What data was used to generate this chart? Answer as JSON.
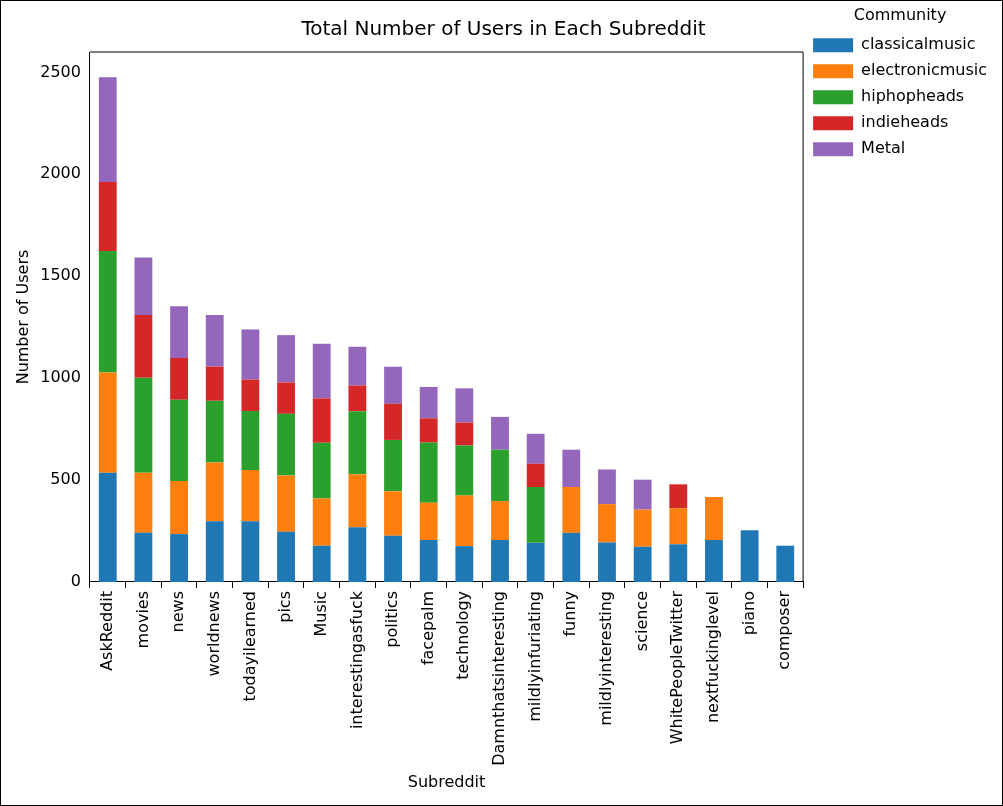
{
  "chart_data": {
    "type": "bar",
    "stacked": true,
    "title": "Total Number of Users in Each Subreddit",
    "xlabel": "Subreddit",
    "ylabel": "Number of Users",
    "legend_title": "Community",
    "legend": "top right",
    "grid": false,
    "categories": [
      "AskReddit",
      "movies",
      "news",
      "worldnews",
      "todayilearned",
      "pics",
      "Music",
      "interestingasfuck",
      "politics",
      "facepalm",
      "technology",
      "Damnthatsinteresting",
      "mildlyinfuriating",
      "funny",
      "mildlyinteresting",
      "science",
      "WhitePeopleTwitter",
      "nextfuckinglevel",
      "piano",
      "composer"
    ],
    "ylim": [
      0,
      2600
    ],
    "yticks": [
      0,
      500,
      1000,
      1500,
      2000,
      2500
    ],
    "series": [
      {
        "name": "classicalmusic",
        "color": "#1f77b4",
        "values": [
          536,
          242,
          235,
          298,
          298,
          247,
          178,
          268,
          227,
          206,
          176,
          206,
          192,
          241,
          194,
          173,
          185,
          206,
          254,
          178
        ]
      },
      {
        "name": "electronicmusic",
        "color": "#ff7f0e",
        "values": [
          492,
          294,
          260,
          288,
          252,
          275,
          232,
          260,
          218,
          183,
          248,
          191,
          null,
          225,
          188,
          182,
          177,
          211,
          null,
          null
        ]
      },
      {
        "name": "hiphopheads",
        "color": "#2ca02c",
        "values": [
          596,
          466,
          399,
          303,
          289,
          303,
          273,
          310,
          252,
          295,
          246,
          252,
          274,
          null,
          null,
          null,
          null,
          null,
          null,
          null
        ]
      },
      {
        "name": "indieheads",
        "color": "#d62728",
        "values": [
          338,
          308,
          205,
          168,
          154,
          154,
          218,
          126,
          177,
          119,
          112,
          null,
          114,
          null,
          null,
          null,
          117,
          null,
          null,
          null
        ]
      },
      {
        "name": "Metal",
        "color": "#9467bd",
        "values": [
          514,
          282,
          254,
          253,
          246,
          232,
          268,
          190,
          182,
          154,
          168,
          161,
          147,
          183,
          170,
          147,
          null,
          null,
          null,
          null
        ]
      }
    ]
  }
}
